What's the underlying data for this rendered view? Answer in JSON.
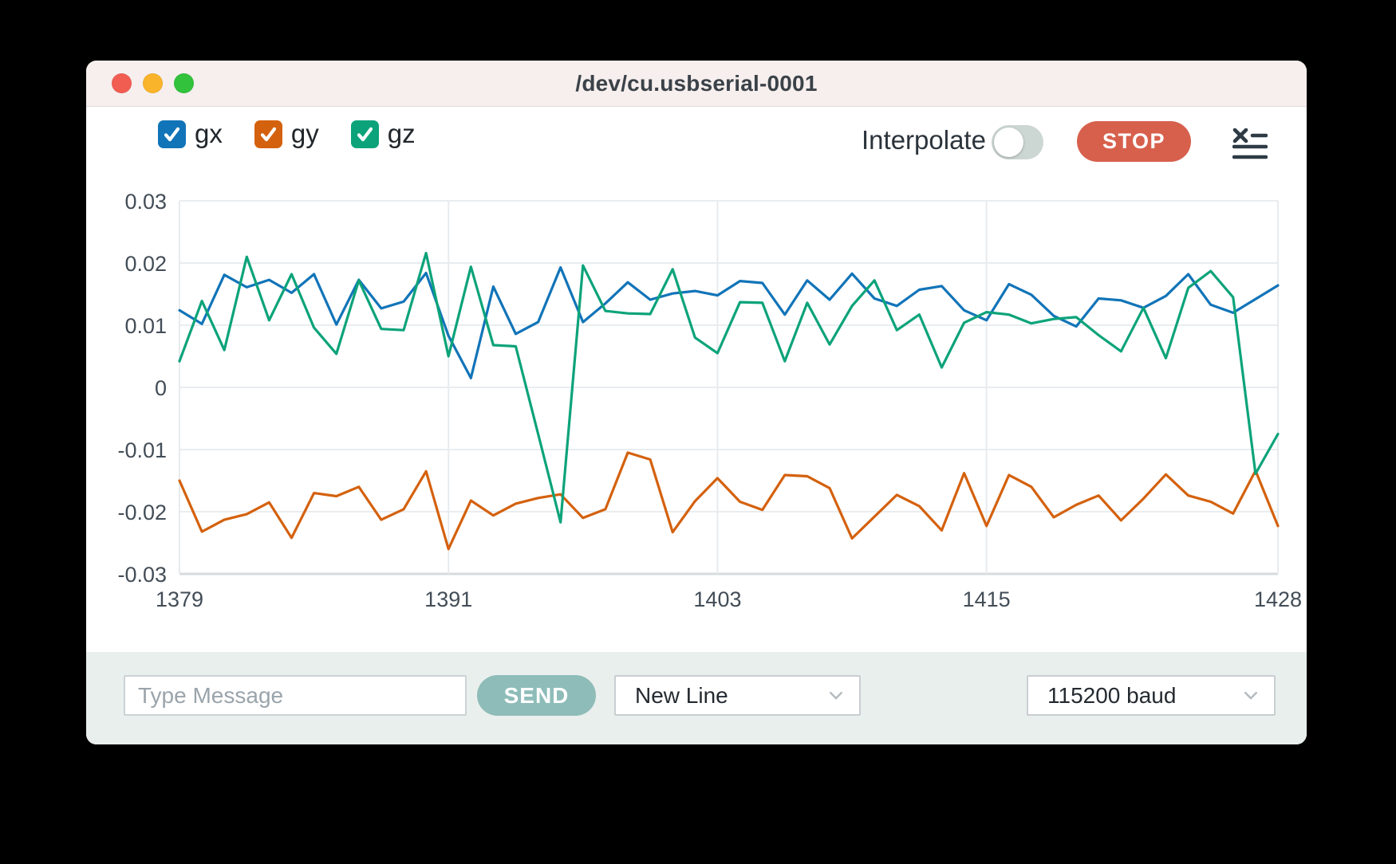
{
  "window": {
    "title": "/dev/cu.usbserial-0001"
  },
  "toolbar": {
    "legend": [
      {
        "label": "gx",
        "color": "#1174b8",
        "checked": true
      },
      {
        "label": "gy",
        "color": "#d4610d",
        "checked": true
      },
      {
        "label": "gz",
        "color": "#0ca37a",
        "checked": true
      }
    ],
    "interpolate_label": "Interpolate",
    "interpolate_on": false,
    "stop_label": "STOP",
    "stop_color": "#d7604d",
    "clear_icon": "clear-log-icon"
  },
  "chart_data": {
    "type": "line",
    "title": "",
    "xlabel": "",
    "ylabel": "",
    "grid": true,
    "legend_position": "top-left",
    "ylim": [
      -0.03,
      0.03
    ],
    "yticks": [
      0.03,
      0.02,
      0.01,
      0,
      -0.01,
      -0.02,
      -0.03
    ],
    "xticks": [
      1379,
      1391,
      1403,
      1415,
      1428
    ],
    "x": [
      1379,
      1380,
      1381,
      1382,
      1383,
      1384,
      1385,
      1386,
      1387,
      1388,
      1389,
      1390,
      1391,
      1392,
      1393,
      1394,
      1395,
      1396,
      1397,
      1398,
      1399,
      1400,
      1401,
      1402,
      1403,
      1404,
      1405,
      1406,
      1407,
      1408,
      1409,
      1410,
      1411,
      1412,
      1413,
      1414,
      1415,
      1416,
      1417,
      1418,
      1419,
      1420,
      1421,
      1422,
      1423,
      1424,
      1425,
      1426,
      1427,
      1428
    ],
    "series": [
      {
        "name": "gx",
        "color": "#1174b8",
        "values": [
          0.0124,
          0.0102,
          0.0181,
          0.0161,
          0.0173,
          0.0152,
          0.0182,
          0.0101,
          0.0173,
          0.0127,
          0.0138,
          0.0184,
          0.0083,
          0.0015,
          0.0162,
          0.0086,
          0.0105,
          0.0193,
          0.0105,
          0.0135,
          0.0169,
          0.0141,
          0.0151,
          0.0155,
          0.0148,
          0.0171,
          0.0168,
          0.0117,
          0.0172,
          0.0141,
          0.0183,
          0.0143,
          0.0131,
          0.0157,
          0.0163,
          0.0124,
          0.0108,
          0.0166,
          0.0149,
          0.0115,
          0.0098,
          0.0143,
          0.014,
          0.0128,
          0.0147,
          0.0182,
          0.0133,
          0.012,
          0.0142,
          0.0164
        ]
      },
      {
        "name": "gy",
        "color": "#d4610d",
        "values": [
          -0.015,
          -0.0232,
          -0.0213,
          -0.0204,
          -0.0185,
          -0.0242,
          -0.017,
          -0.0175,
          -0.016,
          -0.0213,
          -0.0196,
          -0.0135,
          -0.026,
          -0.0182,
          -0.0206,
          -0.0187,
          -0.0178,
          -0.0172,
          -0.021,
          -0.0196,
          -0.0105,
          -0.0116,
          -0.0233,
          -0.0183,
          -0.0146,
          -0.0184,
          -0.0197,
          -0.0141,
          -0.0143,
          -0.0162,
          -0.0243,
          -0.0208,
          -0.0173,
          -0.0191,
          -0.023,
          -0.0138,
          -0.0223,
          -0.0141,
          -0.016,
          -0.0209,
          -0.0189,
          -0.0174,
          -0.0214,
          -0.0179,
          -0.014,
          -0.0174,
          -0.0184,
          -0.0203,
          -0.0134,
          -0.0223
        ]
      },
      {
        "name": "gz",
        "color": "#0ca37a",
        "values": [
          0.0042,
          0.0139,
          0.006,
          0.021,
          0.0108,
          0.0182,
          0.0096,
          0.0054,
          0.0172,
          0.0094,
          0.0092,
          0.0216,
          0.005,
          0.0194,
          0.0068,
          0.0066,
          -0.0075,
          -0.0217,
          0.0196,
          0.0123,
          0.0119,
          0.0118,
          0.019,
          0.008,
          0.0055,
          0.0137,
          0.0136,
          0.0042,
          0.0136,
          0.0069,
          0.0131,
          0.0172,
          0.0092,
          0.0117,
          0.0032,
          0.0104,
          0.0121,
          0.0117,
          0.0103,
          0.011,
          0.0113,
          0.0084,
          0.0058,
          0.0128,
          0.0047,
          0.016,
          0.0187,
          0.0145,
          -0.0139,
          -0.0075
        ]
      }
    ]
  },
  "bottom_bar": {
    "message_placeholder": "Type Message",
    "send_label": "SEND",
    "line_ending_value": "New Line",
    "baud_value": "115200 baud"
  }
}
